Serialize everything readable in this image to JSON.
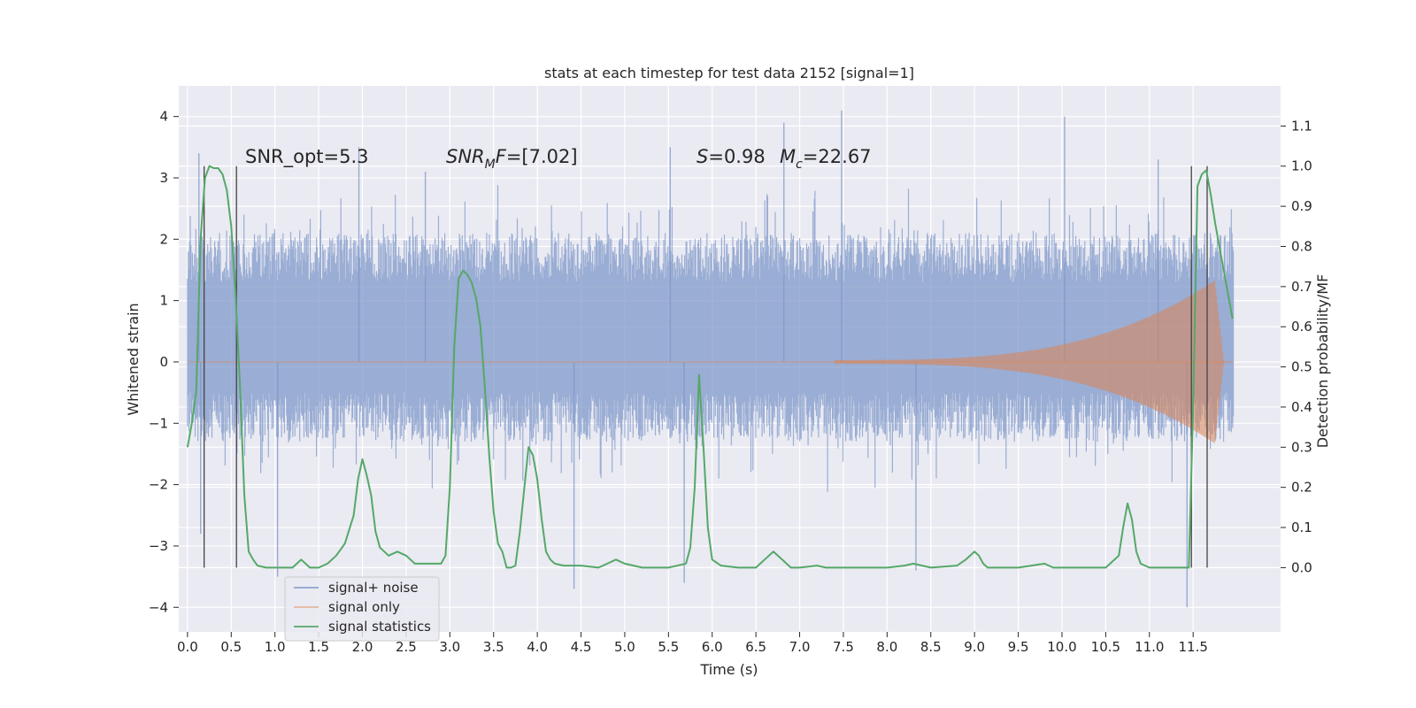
{
  "chart_data": {
    "type": "line",
    "title": "stats at each timestep for test data 2152 [signal=1]",
    "xlabel": "Time (s)",
    "ylabel": "Whitened strain",
    "y2label": "Detection probability/MF",
    "xlim": [
      -0.1,
      12.5
    ],
    "ylim": [
      -4.4,
      4.5
    ],
    "y2lim": [
      -0.16,
      1.2
    ],
    "grid": true,
    "legend_position": "lower-left",
    "x_ticks": [
      0.0,
      0.5,
      1.0,
      1.5,
      2.0,
      2.5,
      3.0,
      3.5,
      4.0,
      4.5,
      5.0,
      5.5,
      6.0,
      6.5,
      7.0,
      7.5,
      8.0,
      8.5,
      9.0,
      9.5,
      10.0,
      10.5,
      11.0,
      11.5
    ],
    "x_tick_labels": [
      "0.0",
      "0.5",
      "1.0",
      "1.5",
      "2.0",
      "2.5",
      "3.0",
      "3.5",
      "4.0",
      "4.5",
      "5.0",
      "5.5",
      "6.0",
      "6.5",
      "7.0",
      "7.5",
      "8.0",
      "8.5",
      "9.0",
      "9.5",
      "10.0",
      "10.5",
      "11.0",
      "11.5"
    ],
    "y_ticks": [
      4,
      3,
      2,
      1,
      0,
      -1,
      -2,
      -3,
      -4
    ],
    "y_tick_labels": [
      "4",
      "3",
      "2",
      "1",
      "0",
      "−1",
      "−2",
      "−3",
      "−4"
    ],
    "y2_ticks": [
      1.1,
      1.0,
      0.9,
      0.8,
      0.7,
      0.6,
      0.5,
      0.4,
      0.3,
      0.2,
      0.1,
      0.0
    ],
    "y2_tick_labels": [
      "1.1",
      "1.0",
      "0.9",
      "0.8",
      "0.7",
      "0.6",
      "0.5",
      "0.4",
      "0.3",
      "0.2",
      "0.1",
      "0.0"
    ],
    "annotations": {
      "snr_opt": "SNR_opt=5.3",
      "snr_mf_main": "SNR",
      "snr_mf_sub": "M",
      "snr_mf_rest": "F=[7.02]",
      "s_italic": "S",
      "s_rest": "=0.98",
      "mc_italic": "M",
      "mc_sub": "c",
      "mc_rest": "=22.67"
    },
    "series": [
      {
        "name": "signal+ noise",
        "color": "#7c96c8",
        "envelope_core": [
          -1.3,
          1.3
        ],
        "envelope_typical": [
          -2.0,
          2.0
        ],
        "peaks": [
          {
            "x": 0.13,
            "y": 3.4
          },
          {
            "x": 0.15,
            "y": -2.8
          },
          {
            "x": 1.96,
            "y": 3.5
          },
          {
            "x": 2.72,
            "y": 3.1
          },
          {
            "x": 5.52,
            "y": 3.5
          },
          {
            "x": 6.82,
            "y": 3.9
          },
          {
            "x": 7.48,
            "y": 4.1
          },
          {
            "x": 10.03,
            "y": 4.0
          },
          {
            "x": 11.1,
            "y": 3.3
          },
          {
            "x": 1.03,
            "y": -3.5
          },
          {
            "x": 4.42,
            "y": -3.7
          },
          {
            "x": 11.43,
            "y": -4.0
          },
          {
            "x": 8.33,
            "y": -3.4
          },
          {
            "x": 5.68,
            "y": -3.6
          }
        ]
      },
      {
        "name": "signal only",
        "color": "#dd8452",
        "x_start": 7.4,
        "x_end": 11.95,
        "peak_x": 11.75,
        "peak_amplitude": 1.3
      },
      {
        "name": "signal statistics",
        "color": "#55a868",
        "axis": "right",
        "x": [
          0.0,
          0.05,
          0.1,
          0.15,
          0.2,
          0.25,
          0.3,
          0.35,
          0.4,
          0.45,
          0.5,
          0.55,
          0.6,
          0.65,
          0.7,
          0.75,
          0.8,
          0.9,
          1.0,
          1.1,
          1.2,
          1.3,
          1.4,
          1.5,
          1.6,
          1.7,
          1.8,
          1.9,
          1.95,
          2.0,
          2.05,
          2.1,
          2.15,
          2.2,
          2.3,
          2.4,
          2.5,
          2.6,
          2.7,
          2.8,
          2.9,
          2.95,
          3.0,
          3.05,
          3.1,
          3.15,
          3.2,
          3.25,
          3.3,
          3.35,
          3.4,
          3.45,
          3.5,
          3.55,
          3.6,
          3.65,
          3.7,
          3.75,
          3.8,
          3.9,
          3.95,
          4.0,
          4.05,
          4.1,
          4.15,
          4.2,
          4.3,
          4.5,
          4.7,
          4.8,
          4.9,
          5.0,
          5.2,
          5.5,
          5.7,
          5.75,
          5.8,
          5.85,
          5.9,
          5.95,
          6.0,
          6.1,
          6.3,
          6.5,
          6.6,
          6.7,
          6.8,
          6.9,
          7.0,
          7.2,
          7.3,
          7.5,
          7.8,
          8.0,
          8.2,
          8.3,
          8.5,
          8.8,
          8.9,
          9.0,
          9.05,
          9.1,
          9.15,
          9.2,
          9.3,
          9.5,
          9.8,
          9.9,
          10.0,
          10.5,
          10.65,
          10.7,
          10.75,
          10.8,
          10.85,
          10.9,
          11.0,
          11.1,
          11.2,
          11.3,
          11.4,
          11.45,
          11.5,
          11.55,
          11.6,
          11.65,
          11.7,
          11.75,
          11.8,
          11.85,
          11.9,
          11.95
        ],
        "y": [
          0.3,
          0.36,
          0.44,
          0.82,
          0.97,
          1.0,
          0.995,
          0.995,
          0.98,
          0.94,
          0.85,
          0.68,
          0.45,
          0.18,
          0.04,
          0.02,
          0.005,
          0.0,
          0.0,
          0.0,
          0.0,
          0.02,
          0.0,
          0.0,
          0.01,
          0.03,
          0.06,
          0.13,
          0.22,
          0.27,
          0.23,
          0.18,
          0.09,
          0.05,
          0.03,
          0.04,
          0.03,
          0.01,
          0.01,
          0.01,
          0.01,
          0.03,
          0.2,
          0.55,
          0.72,
          0.74,
          0.73,
          0.71,
          0.67,
          0.6,
          0.45,
          0.28,
          0.14,
          0.06,
          0.04,
          0.0,
          0.0,
          0.005,
          0.09,
          0.3,
          0.28,
          0.22,
          0.12,
          0.04,
          0.02,
          0.01,
          0.005,
          0.005,
          0.0,
          0.01,
          0.02,
          0.01,
          0.0,
          0.0,
          0.01,
          0.05,
          0.2,
          0.48,
          0.3,
          0.1,
          0.02,
          0.005,
          0.0,
          0.0,
          0.02,
          0.04,
          0.02,
          0.0,
          0.0,
          0.005,
          0.0,
          0.0,
          0.0,
          0.0,
          0.005,
          0.01,
          0.0,
          0.005,
          0.02,
          0.04,
          0.03,
          0.01,
          0.0,
          0.0,
          0.0,
          0.0,
          0.01,
          0.0,
          0.0,
          0.0,
          0.03,
          0.1,
          0.16,
          0.12,
          0.04,
          0.01,
          0.0,
          0.0,
          0.0,
          0.0,
          0.0,
          0.0,
          0.4,
          0.95,
          0.98,
          0.99,
          0.93,
          0.86,
          0.8,
          0.74,
          0.68,
          0.62
        ]
      }
    ],
    "vertical_markers": [
      0.19,
      0.56,
      11.48,
      11.66
    ]
  }
}
